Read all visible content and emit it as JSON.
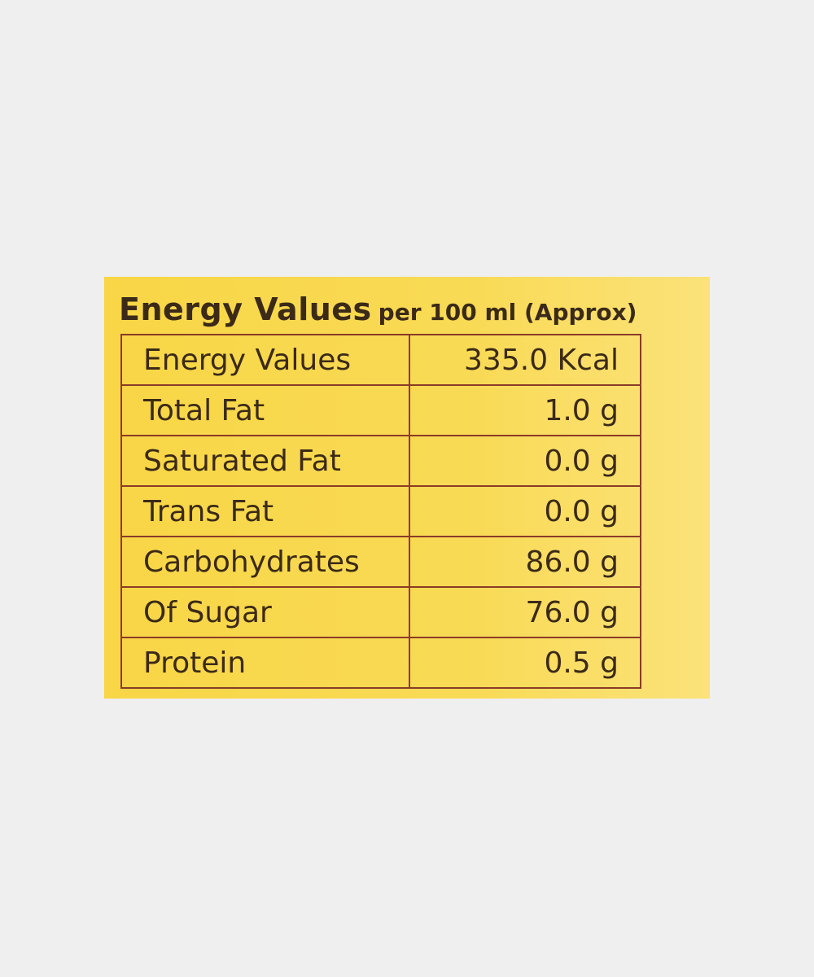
{
  "header": {
    "title": "Energy Values",
    "subtitle": "per 100 ml (Approx)"
  },
  "table": {
    "rows": [
      [
        "Energy Values",
        "335.0 Kcal"
      ],
      [
        "Total Fat",
        "1.0 g"
      ],
      [
        "Saturated Fat",
        "0.0 g"
      ],
      [
        "Trans Fat",
        "0.0 g"
      ],
      [
        "Carbohydrates",
        "86.0 g"
      ],
      [
        "Of Sugar",
        "76.0 g"
      ],
      [
        "Protein",
        "0.5 g"
      ]
    ]
  }
}
